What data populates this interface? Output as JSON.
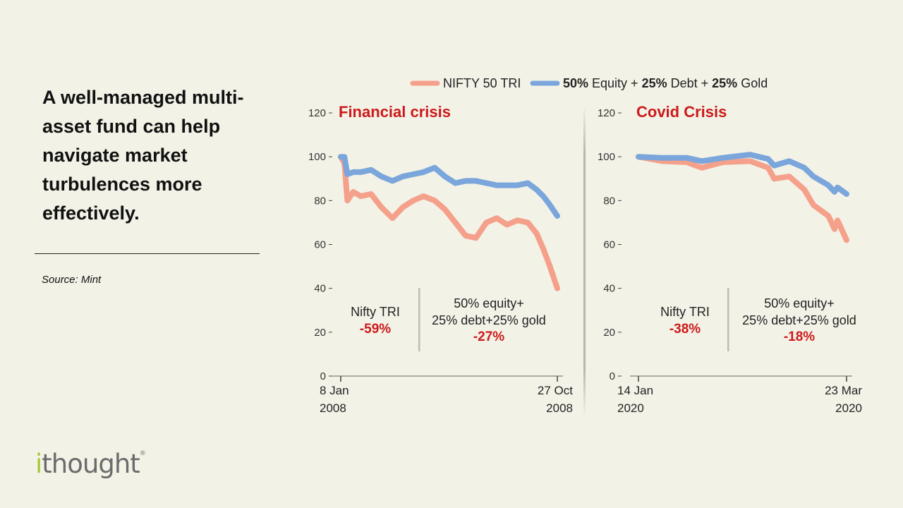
{
  "slide": {
    "headline": "A well-managed multi-asset fund can help navigate market turbulences more effectively.",
    "source": "Source: Mint",
    "logo_text": "ithought",
    "logo_mark": "®"
  },
  "colors": {
    "nifty": "#f4a08a",
    "multi_asset": "#7aa6dc",
    "title": "#cc1a1a",
    "background": "#f3f2e7"
  },
  "legend": {
    "position": "top",
    "entries": [
      "NIFTY 50 TRI",
      "50% Equity + 25% Debt + 25% Gold"
    ]
  },
  "chart_data": [
    {
      "type": "line",
      "title": "Financial crisis",
      "ylim": [
        0,
        120
      ],
      "yticks": [
        0,
        20,
        40,
        60,
        80,
        100,
        120
      ],
      "xlim": [
        "2008-01-08",
        "2008-10-27"
      ],
      "xtick_labels": [
        [
          "8 Jan",
          "2008"
        ],
        [
          "27 Oct",
          "2008"
        ]
      ],
      "grid": false,
      "x": [
        "2008-01-08",
        "2008-01-13",
        "2008-01-17",
        "2008-01-25",
        "2008-02-04",
        "2008-02-18",
        "2008-03-03",
        "2008-03-18",
        "2008-04-01",
        "2008-04-15",
        "2008-04-29",
        "2008-05-14",
        "2008-05-28",
        "2008-06-11",
        "2008-06-25",
        "2008-07-09",
        "2008-07-23",
        "2008-08-06",
        "2008-08-20",
        "2008-09-03",
        "2008-09-17",
        "2008-09-29",
        "2008-10-08",
        "2008-10-17",
        "2008-10-27"
      ],
      "series": [
        {
          "name": "NIFTY 50 TRI",
          "values": [
            100,
            97,
            80,
            84,
            82,
            83,
            77,
            72,
            77,
            80,
            82,
            80,
            76,
            70,
            64,
            63,
            70,
            72,
            69,
            71,
            70,
            65,
            58,
            50,
            40
          ]
        },
        {
          "name": "50% Equity + 25% Debt + 25% Gold",
          "values": [
            100,
            100,
            92,
            93,
            93,
            94,
            91,
            89,
            91,
            92,
            93,
            95,
            91,
            88,
            89,
            89,
            88,
            87,
            87,
            87,
            88,
            85,
            82,
            78,
            73
          ]
        }
      ],
      "annotations": {
        "left_label": "Nifty TRI",
        "left_value": "-59%",
        "right_label_1": "50% equity+",
        "right_label_2": "25% debt+25% gold",
        "right_value": "-27%"
      }
    },
    {
      "type": "line",
      "title": "Covid Crisis",
      "ylim": [
        0,
        120
      ],
      "yticks": [
        0,
        20,
        40,
        60,
        80,
        100,
        120
      ],
      "xlim": [
        "2020-01-14",
        "2020-03-23"
      ],
      "xtick_labels": [
        [
          "14 Jan",
          "2020"
        ],
        [
          "23 Mar",
          "2020"
        ]
      ],
      "grid": false,
      "x": [
        "2020-01-14",
        "2020-01-22",
        "2020-01-30",
        "2020-02-04",
        "2020-02-11",
        "2020-02-20",
        "2020-02-26",
        "2020-02-28",
        "2020-03-04",
        "2020-03-09",
        "2020-03-12",
        "2020-03-17",
        "2020-03-19",
        "2020-03-20",
        "2020-03-23"
      ],
      "series": [
        {
          "name": "NIFTY 50 TRI",
          "values": [
            100,
            98,
            97.5,
            95,
            97.5,
            98,
            95,
            90,
            91,
            85,
            78,
            73,
            67,
            71,
            62
          ]
        },
        {
          "name": "50% Equity + 25% Debt + 25% Gold",
          "values": [
            100,
            99.5,
            99.5,
            98,
            99.5,
            101,
            99,
            96,
            98,
            95,
            91,
            87,
            84,
            86,
            83
          ]
        }
      ],
      "annotations": {
        "left_label": "Nifty TRI",
        "left_value": "-38%",
        "right_label_1": "50% equity+",
        "right_label_2": "25% debt+25% gold",
        "right_value": "-18%"
      }
    }
  ]
}
